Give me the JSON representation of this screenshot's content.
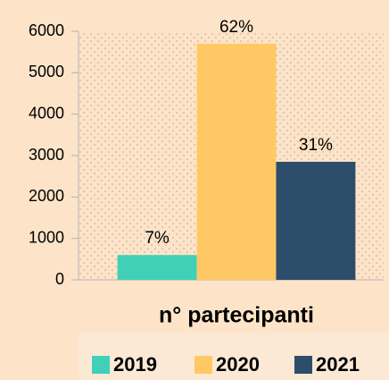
{
  "chart_data": {
    "type": "bar",
    "categories": [
      "n° partecipanti"
    ],
    "series": [
      {
        "name": "2019",
        "color": "#40d0b8",
        "values": [
          600
        ]
      },
      {
        "name": "2020",
        "color": "#ffc864",
        "values": [
          5700
        ]
      },
      {
        "name": "2021",
        "color": "#2d4e6b",
        "values": [
          2850
        ]
      }
    ],
    "annotations": [
      "7%",
      "62%",
      "31%"
    ],
    "ylim": [
      0,
      6000
    ],
    "yticks": [
      0,
      1000,
      2000,
      3000,
      4000,
      5000,
      6000
    ],
    "grid": false,
    "legend": "bottom"
  }
}
